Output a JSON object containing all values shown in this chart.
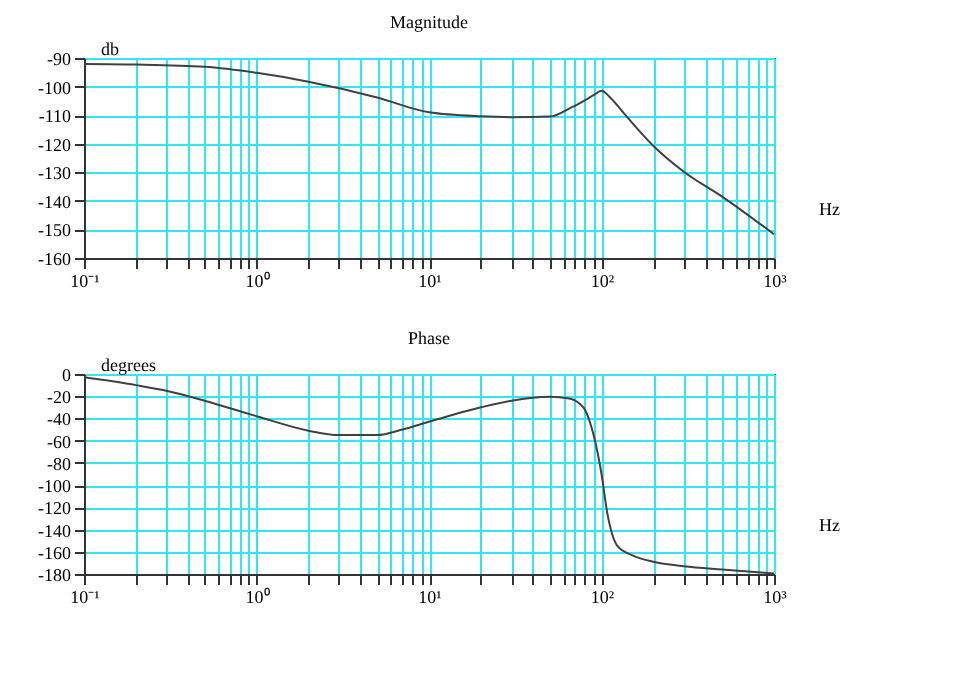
{
  "chart_data": [
    {
      "type": "line",
      "title": "Magnitude",
      "xlabel": "Hz",
      "ylabel": "db",
      "log": "x",
      "grid": true,
      "line_style": "solid",
      "x": [
        0.1,
        0.2,
        0.5,
        1,
        2,
        5,
        10,
        20,
        30,
        50,
        67,
        80,
        90,
        100,
        113,
        135,
        200,
        300,
        500,
        1000
      ],
      "series": [
        {
          "color": "#404040",
          "values": [
            -92.1,
            -92.3,
            -93.1,
            -95.2,
            -98.3,
            -103.8,
            -109,
            -110.4,
            -110.7,
            -110.5,
            -107.3,
            -104.8,
            -103,
            -101.5,
            -104,
            -109.4,
            -120.8,
            -129.8,
            -138.5,
            -151.7
          ]
        }
      ],
      "xlim": [
        0.1,
        1000
      ],
      "xticks": [
        {
          "value": 0.1,
          "label": "10⁻¹"
        },
        {
          "value": 0.2,
          "label": null
        },
        {
          "value": 0.3,
          "label": null
        },
        {
          "value": 0.4,
          "label": null
        },
        {
          "value": 0.5,
          "label": null
        },
        {
          "value": 0.6,
          "label": null
        },
        {
          "value": 0.7,
          "label": null
        },
        {
          "value": 0.8,
          "label": null
        },
        {
          "value": 0.9,
          "label": null
        },
        {
          "value": 1,
          "label": "10⁰"
        },
        {
          "value": 2,
          "label": null
        },
        {
          "value": 3,
          "label": null
        },
        {
          "value": 4,
          "label": null
        },
        {
          "value": 5,
          "label": null
        },
        {
          "value": 6,
          "label": null
        },
        {
          "value": 7,
          "label": null
        },
        {
          "value": 8,
          "label": null
        },
        {
          "value": 9,
          "label": null
        },
        {
          "value": 10,
          "label": "10¹"
        },
        {
          "value": 20,
          "label": null
        },
        {
          "value": 30,
          "label": null
        },
        {
          "value": 40,
          "label": null
        },
        {
          "value": 50,
          "label": null
        },
        {
          "value": 60,
          "label": null
        },
        {
          "value": 70,
          "label": null
        },
        {
          "value": 80,
          "label": null
        },
        {
          "value": 90,
          "label": null
        },
        {
          "value": 100,
          "label": "10²"
        },
        {
          "value": 200,
          "label": null
        },
        {
          "value": 300,
          "label": null
        },
        {
          "value": 400,
          "label": null
        },
        {
          "value": 500,
          "label": null
        },
        {
          "value": 600,
          "label": null
        },
        {
          "value": 700,
          "label": null
        },
        {
          "value": 800,
          "label": null
        },
        {
          "value": 900,
          "label": null
        },
        {
          "value": 1000,
          "label": "10³"
        }
      ],
      "ylim": [
        -160,
        -90
      ],
      "yticks": [
        -160,
        -150,
        -140,
        -130,
        -120,
        -110,
        -100,
        -90
      ]
    },
    {
      "type": "line",
      "title": "Phase",
      "xlabel": "Hz",
      "ylabel": "degrees",
      "log": "x",
      "grid": true,
      "line_style": "solid",
      "x": [
        0.1,
        0.2,
        0.3,
        0.5,
        1,
        2,
        3,
        5,
        7,
        10,
        20,
        30,
        50,
        65,
        75,
        80,
        90,
        100,
        108,
        124,
        150,
        200,
        300,
        500,
        1000
      ],
      "series": [
        {
          "color": "#404040",
          "values": [
            -3,
            -10,
            -15,
            -24,
            -38,
            -51,
            -55,
            -55,
            -50,
            -43,
            -30,
            -24,
            -20.5,
            -22,
            -27,
            -32,
            -55,
            -90,
            -125,
            -155,
            -163,
            -169,
            -173,
            -176,
            -179.5
          ]
        }
      ],
      "xlim": [
        0.1,
        1000
      ],
      "xticks": [
        {
          "value": 0.1,
          "label": "10⁻¹"
        },
        {
          "value": 0.2,
          "label": null
        },
        {
          "value": 0.3,
          "label": null
        },
        {
          "value": 0.4,
          "label": null
        },
        {
          "value": 0.5,
          "label": null
        },
        {
          "value": 0.6,
          "label": null
        },
        {
          "value": 0.7,
          "label": null
        },
        {
          "value": 0.8,
          "label": null
        },
        {
          "value": 0.9,
          "label": null
        },
        {
          "value": 1,
          "label": "10⁰"
        },
        {
          "value": 2,
          "label": null
        },
        {
          "value": 3,
          "label": null
        },
        {
          "value": 4,
          "label": null
        },
        {
          "value": 5,
          "label": null
        },
        {
          "value": 6,
          "label": null
        },
        {
          "value": 7,
          "label": null
        },
        {
          "value": 8,
          "label": null
        },
        {
          "value": 9,
          "label": null
        },
        {
          "value": 10,
          "label": "10¹"
        },
        {
          "value": 20,
          "label": null
        },
        {
          "value": 30,
          "label": null
        },
        {
          "value": 40,
          "label": null
        },
        {
          "value": 50,
          "label": null
        },
        {
          "value": 60,
          "label": null
        },
        {
          "value": 70,
          "label": null
        },
        {
          "value": 80,
          "label": null
        },
        {
          "value": 90,
          "label": null
        },
        {
          "value": 100,
          "label": "10²"
        },
        {
          "value": 200,
          "label": null
        },
        {
          "value": 300,
          "label": null
        },
        {
          "value": 400,
          "label": null
        },
        {
          "value": 500,
          "label": null
        },
        {
          "value": 600,
          "label": null
        },
        {
          "value": 700,
          "label": null
        },
        {
          "value": 800,
          "label": null
        },
        {
          "value": 900,
          "label": null
        },
        {
          "value": 1000,
          "label": "10³"
        }
      ],
      "ylim": [
        -180,
        0
      ],
      "yticks": [
        -180,
        -160,
        -140,
        -120,
        -100,
        -80,
        -60,
        -40,
        -20,
        0
      ]
    }
  ]
}
